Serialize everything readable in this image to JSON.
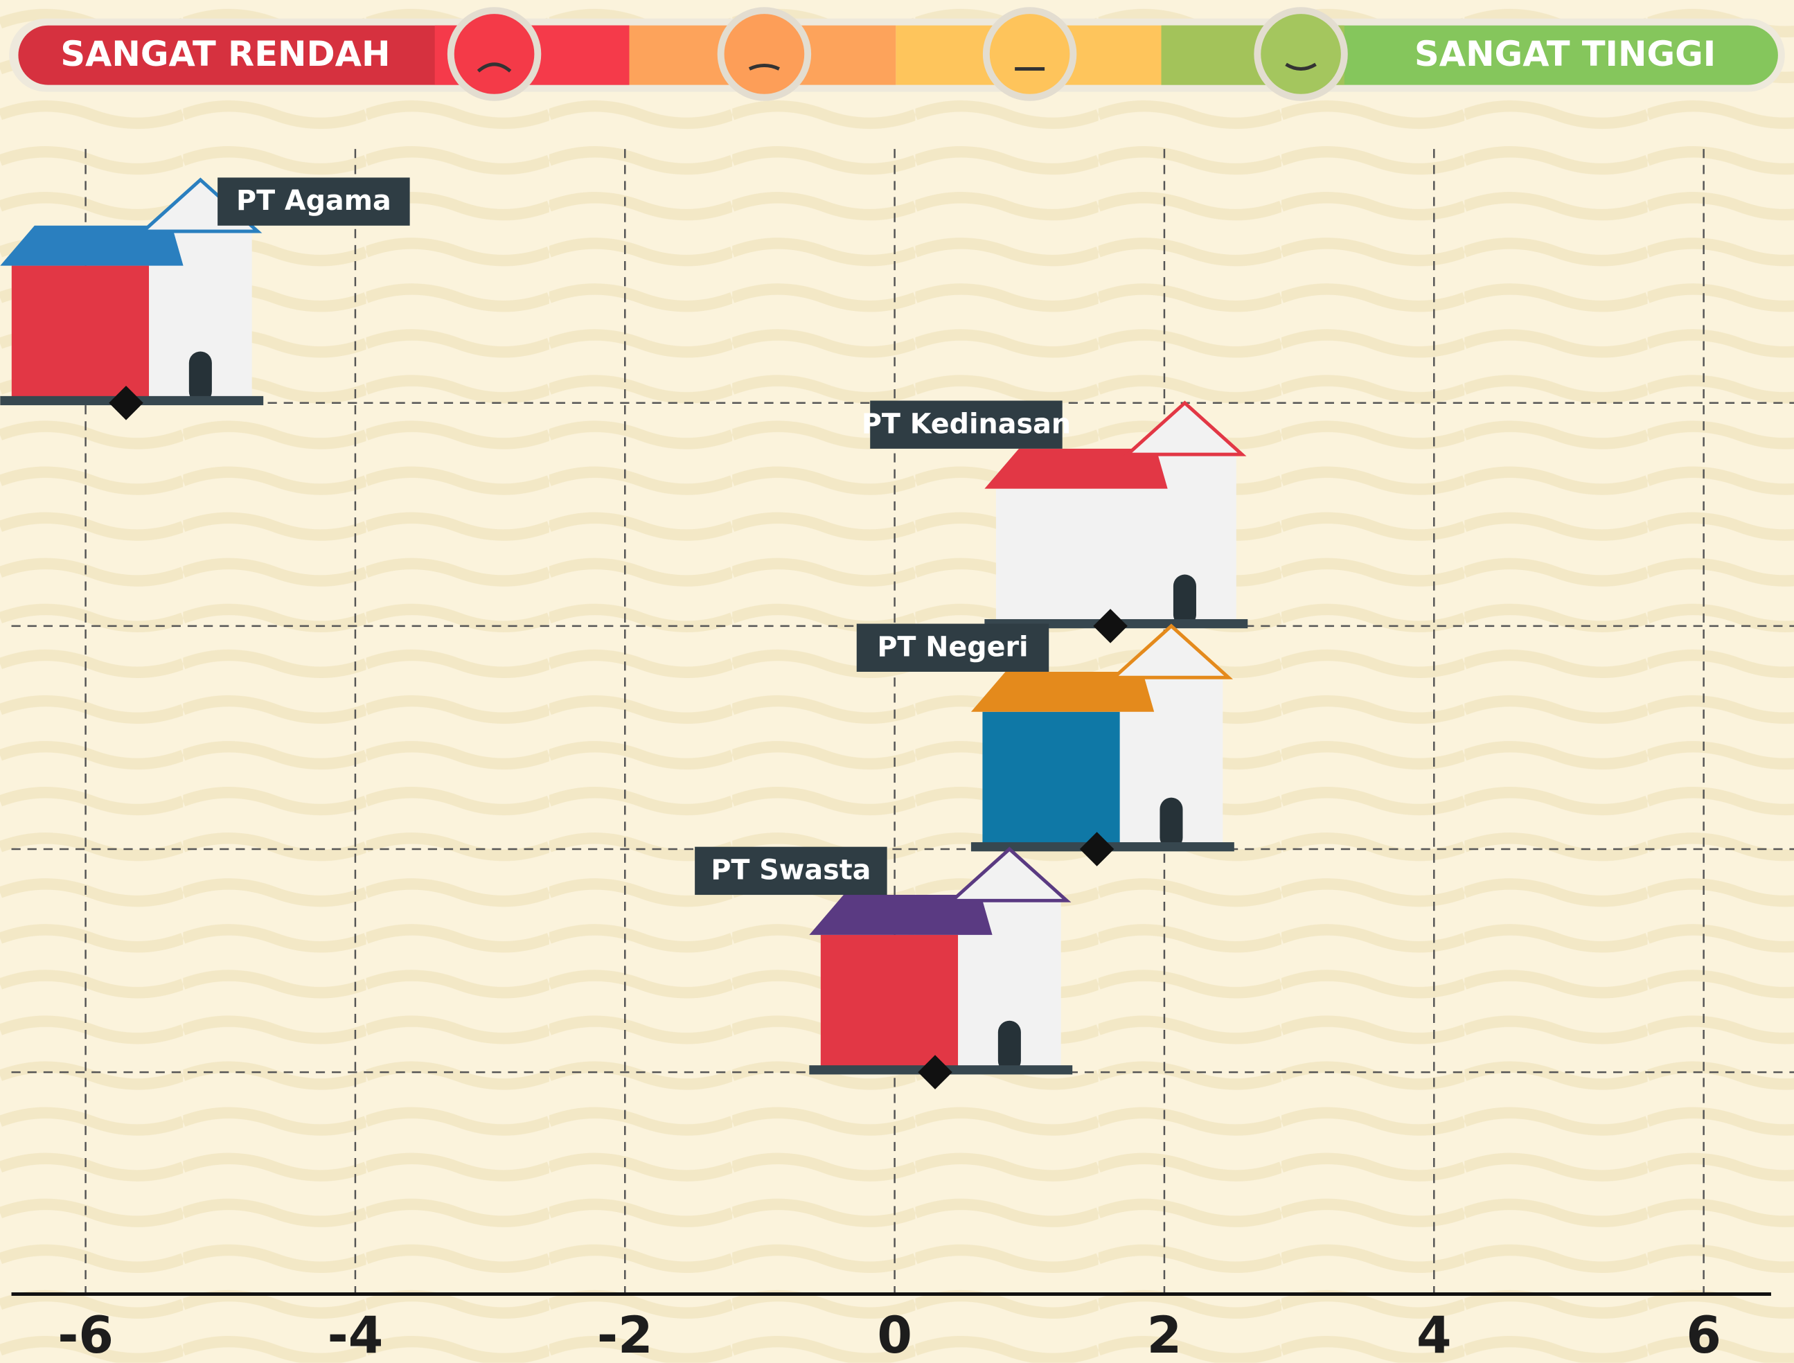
{
  "chart_data": {
    "type": "dot",
    "scale_labels": [
      "SANGAT RENDAH",
      "SANGAT TINGGI"
    ],
    "categories": [
      "PT Agama",
      "PT Kedinasan",
      "PT Negeri",
      "PT Swasta"
    ],
    "values": [
      -5.7,
      1.6,
      1.5,
      0.3
    ],
    "color": "#111111",
    "xlim": [
      -6.55,
      6.5
    ],
    "xticks": [
      -6,
      -4,
      -2,
      0,
      2,
      4,
      6
    ],
    "grid": true
  }
}
